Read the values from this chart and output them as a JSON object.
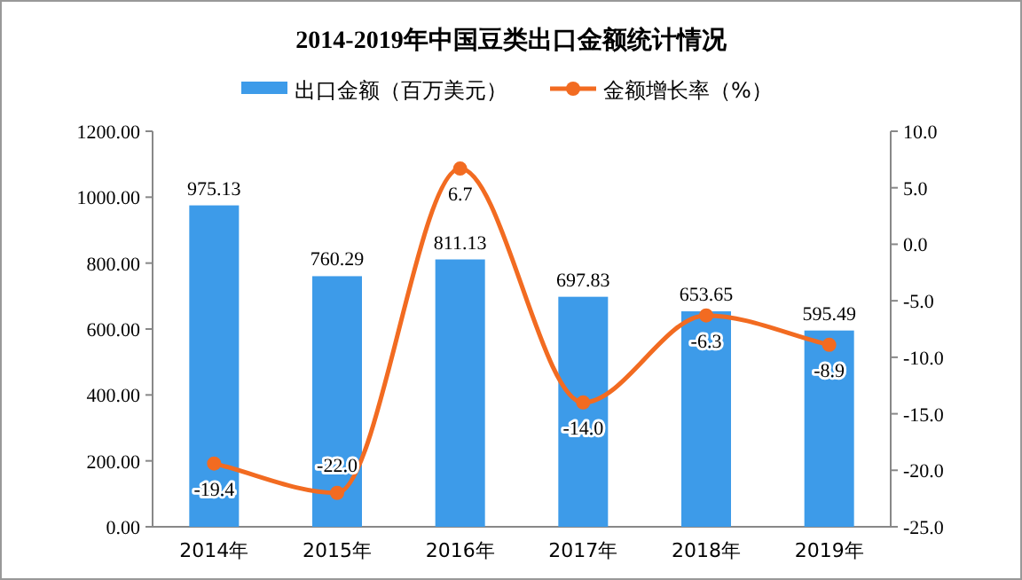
{
  "chart_data": {
    "type": "bar",
    "title": "2014-2019年中国豆类出口金额统计情况",
    "categories": [
      "2014年",
      "2015年",
      "2016年",
      "2017年",
      "2018年",
      "2019年"
    ],
    "series": [
      {
        "name": "出口金额（百万美元）",
        "color": "#3d9be9",
        "values": [
          975.13,
          760.29,
          811.13,
          697.83,
          653.65,
          595.49
        ],
        "value_labels": [
          "975.13",
          "760.29",
          "811.13",
          "697.83",
          "653.65",
          "595.49"
        ]
      },
      {
        "name": "金额增长率（%）",
        "type": "line",
        "axis": "y2",
        "color": "#f26b21",
        "marker": "circle",
        "values": [
          -19.4,
          -22.0,
          6.7,
          -14.0,
          -6.3,
          -8.9
        ],
        "value_labels": [
          "-19.4",
          "-22.0",
          "6.7",
          "-14.0",
          "-6.3",
          "-8.9"
        ]
      }
    ],
    "ylim": [
      0,
      1200
    ],
    "yticks": [
      {
        "value": 0,
        "label": "0.00"
      },
      {
        "value": 200,
        "label": "200.00"
      },
      {
        "value": 400,
        "label": "400.00"
      },
      {
        "value": 600,
        "label": "600.00"
      },
      {
        "value": 800,
        "label": "800.00"
      },
      {
        "value": 1000,
        "label": "1000.00"
      },
      {
        "value": 1200,
        "label": "1200.00"
      }
    ],
    "y2lim": [
      -25,
      10
    ],
    "y2ticks": [
      {
        "value": -25,
        "label": "-25.0"
      },
      {
        "value": -20,
        "label": "-20.0"
      },
      {
        "value": -15,
        "label": "-15.0"
      },
      {
        "value": -10,
        "label": "-10.0"
      },
      {
        "value": -5,
        "label": "-5.0"
      },
      {
        "value": 0,
        "label": "0.0"
      },
      {
        "value": 5,
        "label": "5.0"
      },
      {
        "value": 10,
        "label": "10.0"
      }
    ],
    "grid": false,
    "legend": "top"
  }
}
